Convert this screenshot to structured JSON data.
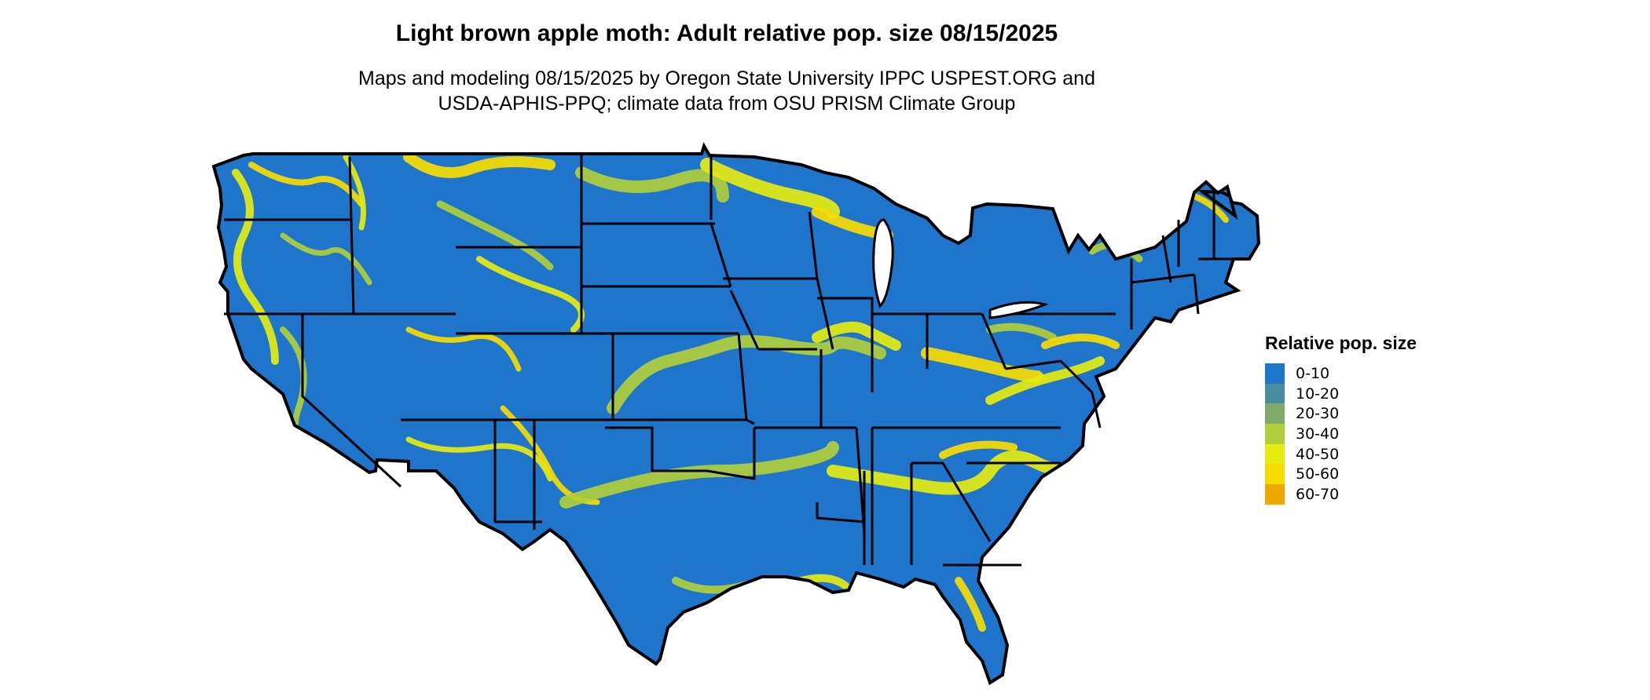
{
  "title": "Light brown apple moth: Adult relative pop. size 08/15/2025",
  "subtitle": [
    "Maps and modeling 08/15/2025 by Oregon State University IPPC USPEST.ORG and",
    "USDA-APHIS-PPQ; climate data from OSU PRISM Climate Group"
  ],
  "legend": {
    "title": "Relative pop. size",
    "items": [
      {
        "label": "0-10",
        "color": "#1f74cc"
      },
      {
        "label": "10-20",
        "color": "#4a8da0"
      },
      {
        "label": "20-30",
        "color": "#7eaa6a"
      },
      {
        "label": "30-40",
        "color": "#b0cf3a"
      },
      {
        "label": "40-50",
        "color": "#e4ec10"
      },
      {
        "label": "50-60",
        "color": "#f8dc00"
      },
      {
        "label": "60-70",
        "color": "#f0a800"
      }
    ]
  },
  "map": {
    "region": "Contiguous United States",
    "base_color": "#1f74cc",
    "hotspot_colors": [
      "#e4ec10",
      "#f8dc00",
      "#b0cf3a"
    ],
    "border_color": "#000000"
  }
}
